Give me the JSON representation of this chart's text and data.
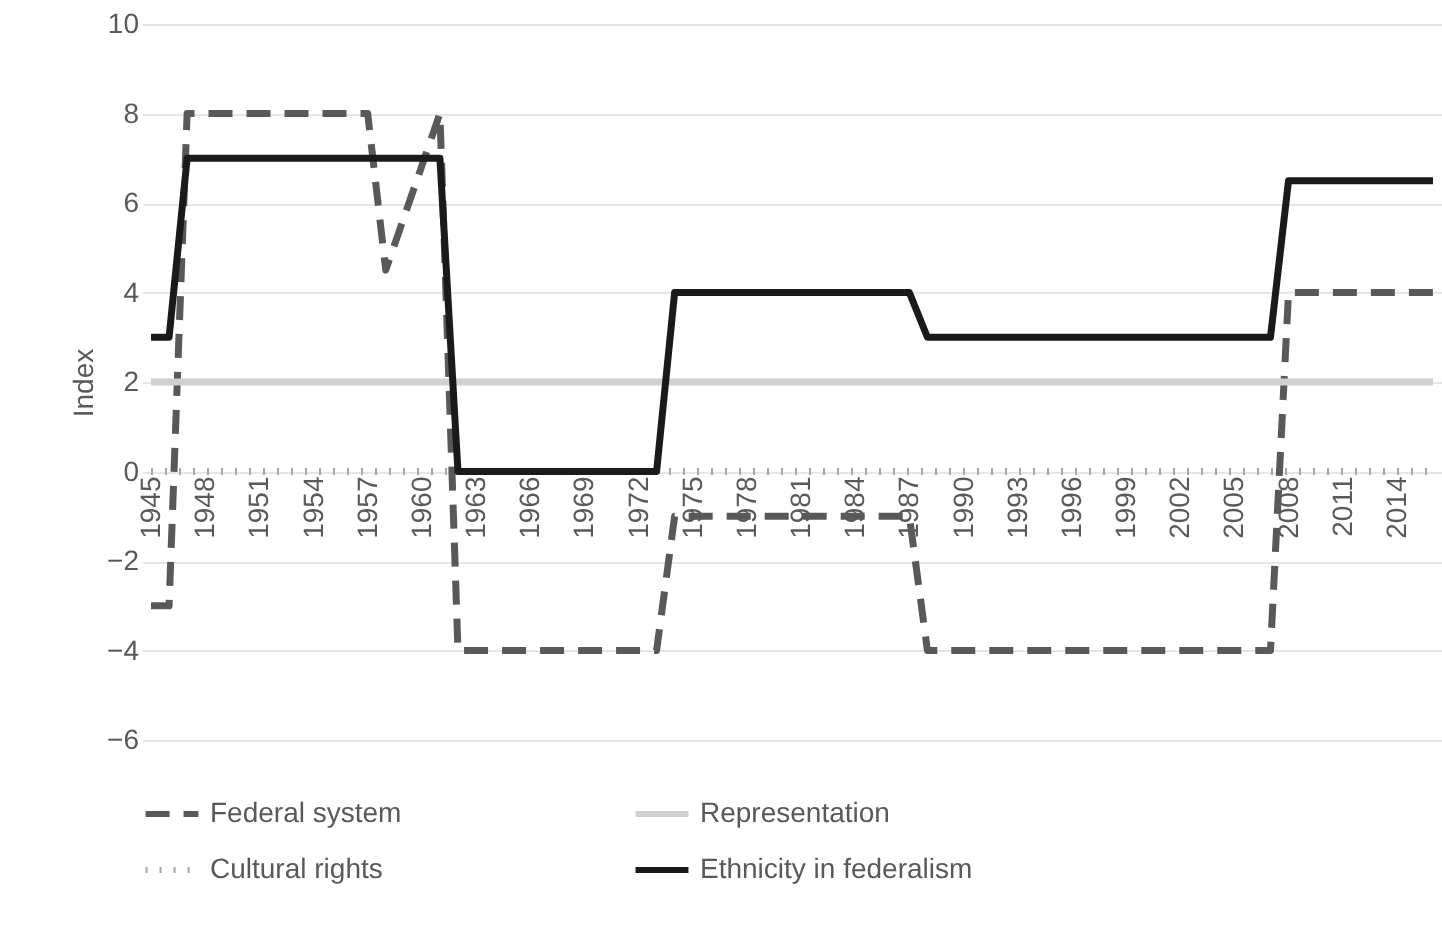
{
  "chart_data": {
    "type": "line",
    "ylabel": "Index",
    "xlim": [
      1944.5,
      2016.5
    ],
    "xticks": [
      1945,
      1948,
      1951,
      1954,
      1957,
      1960,
      1963,
      1966,
      1969,
      1972,
      1975,
      1978,
      1981,
      1984,
      1987,
      1990,
      1993,
      1996,
      1999,
      2002,
      2005,
      2008,
      2011,
      2014
    ],
    "ylim": [
      -6,
      10
    ],
    "yticks": [
      -6,
      -4,
      -2,
      0,
      2,
      4,
      6,
      8,
      10
    ],
    "grid": "y",
    "legend": "bottom",
    "series": [
      {
        "name": "Federal system",
        "color": "#595959",
        "line_style": "dashed",
        "x": [
          1945,
          1946,
          1947,
          1957,
          1958,
          1961,
          1962,
          1973,
          1974,
          1987,
          1988,
          2007,
          2008,
          2016
        ],
        "values": [
          -3,
          -3,
          8,
          8,
          4.5,
          8,
          -4,
          -4,
          -1,
          -1,
          -4,
          -4,
          4,
          4
        ]
      },
      {
        "name": "Representation",
        "color": "#d0d0d0",
        "line_style": "solid",
        "x": [
          1945,
          2016
        ],
        "values": [
          2,
          2
        ]
      },
      {
        "name": "Cultural rights",
        "color": "#a6a6a6",
        "line_style": "dotted",
        "x": [
          1945,
          2016
        ],
        "values": [
          0,
          0
        ]
      },
      {
        "name": "Ethnicity in federalism",
        "color": "#1a1a1a",
        "line_style": "solid",
        "x": [
          1945,
          1946,
          1947,
          1961,
          1962,
          1973,
          1974,
          1987,
          1988,
          2007,
          2008,
          2016
        ],
        "values": [
          3,
          3,
          7,
          7,
          0,
          0,
          4,
          4,
          3,
          3,
          6.5,
          6.5
        ]
      }
    ]
  }
}
